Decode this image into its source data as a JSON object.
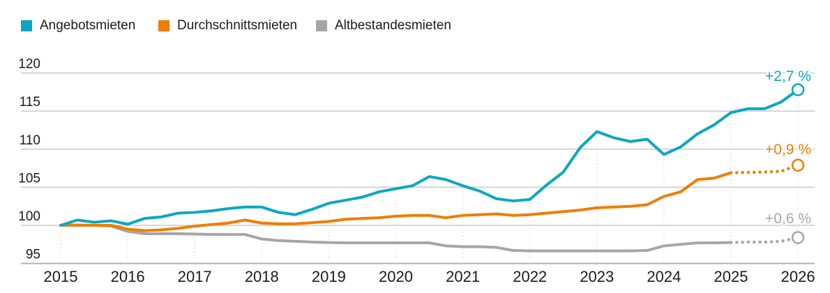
{
  "legend": {
    "items": [
      {
        "label": "Angebotsmieten",
        "color": "#0ca6c2"
      },
      {
        "label": "Durchschnittsmieten",
        "color": "#ef7d00"
      },
      {
        "label": "Altbestandesmieten",
        "color": "#a6a6a6"
      }
    ]
  },
  "chart_data": {
    "type": "line",
    "title": "",
    "xlabel": "",
    "ylabel": "",
    "x_start": 2015,
    "x_step": 0.25,
    "x_tick_labels": [
      "2015",
      "2016",
      "2017",
      "2018",
      "2019",
      "2020",
      "2021",
      "2022",
      "2023",
      "2024",
      "2025",
      "2026"
    ],
    "y_ticks": [
      95,
      100,
      105,
      110,
      115,
      120
    ],
    "ylim": [
      93.5,
      121
    ],
    "grid": "horizontal solid gridlines; dotted vertical drop lines at each year below top series; dotted segments after 2025 are forecast",
    "legend_position": "top-left",
    "colors": {
      "text": "#1a1a1a",
      "grid": "#c9c9c9",
      "axis_bottom": "#b3b3b3",
      "drop_line": "#d9d9d9"
    },
    "series": [
      {
        "name": "Angebotsmieten",
        "color": "#0ca6c2",
        "end_label": "+2,7 %",
        "end_value": 117.8,
        "forecast_from_index": null,
        "values": [
          100,
          100.7,
          100.4,
          100.6,
          100.15,
          100.9,
          101.1,
          101.6,
          101.7,
          101.9,
          102.2,
          102.4,
          102.4,
          101.7,
          101.4,
          102.1,
          102.9,
          103.3,
          103.7,
          104.4,
          104.8,
          105.2,
          106.4,
          106.0,
          105.2,
          104.5,
          103.5,
          103.2,
          103.4,
          105.3,
          107.0,
          110.2,
          112.3,
          111.5,
          111.0,
          111.3,
          109.3,
          110.3,
          112.0,
          113.2,
          114.8,
          115.3,
          115.3,
          116.2,
          117.8
        ]
      },
      {
        "name": "Durchschnittsmieten",
        "color": "#ef7d00",
        "end_label": "+0,9 %",
        "end_value": 107.9,
        "forecast_from_index": 40,
        "values": [
          100,
          100.05,
          100.0,
          100.0,
          99.5,
          99.3,
          99.4,
          99.6,
          99.9,
          100.1,
          100.3,
          100.7,
          100.3,
          100.2,
          100.2,
          100.35,
          100.5,
          100.8,
          100.9,
          101.0,
          101.2,
          101.3,
          101.3,
          101.0,
          101.3,
          101.4,
          101.5,
          101.3,
          101.4,
          101.6,
          101.8,
          102.0,
          102.3,
          102.4,
          102.5,
          102.7,
          103.8,
          104.4,
          106.0,
          106.2,
          106.9,
          106.95,
          107.0,
          107.1,
          107.9
        ]
      },
      {
        "name": "Altbestandesmieten",
        "color": "#a6a6a6",
        "end_label": "+0,6 %",
        "end_value": 98.4,
        "forecast_from_index": 40,
        "values": [
          100,
          100,
          100,
          99.9,
          99.2,
          98.9,
          98.9,
          98.9,
          98.85,
          98.8,
          98.8,
          98.8,
          98.2,
          98.0,
          97.9,
          97.8,
          97.75,
          97.7,
          97.7,
          97.7,
          97.7,
          97.7,
          97.7,
          97.3,
          97.2,
          97.2,
          97.1,
          96.7,
          96.65,
          96.65,
          96.65,
          96.65,
          96.65,
          96.65,
          96.65,
          96.7,
          97.3,
          97.5,
          97.7,
          97.7,
          97.75,
          97.8,
          97.8,
          97.9,
          98.4
        ]
      }
    ]
  }
}
